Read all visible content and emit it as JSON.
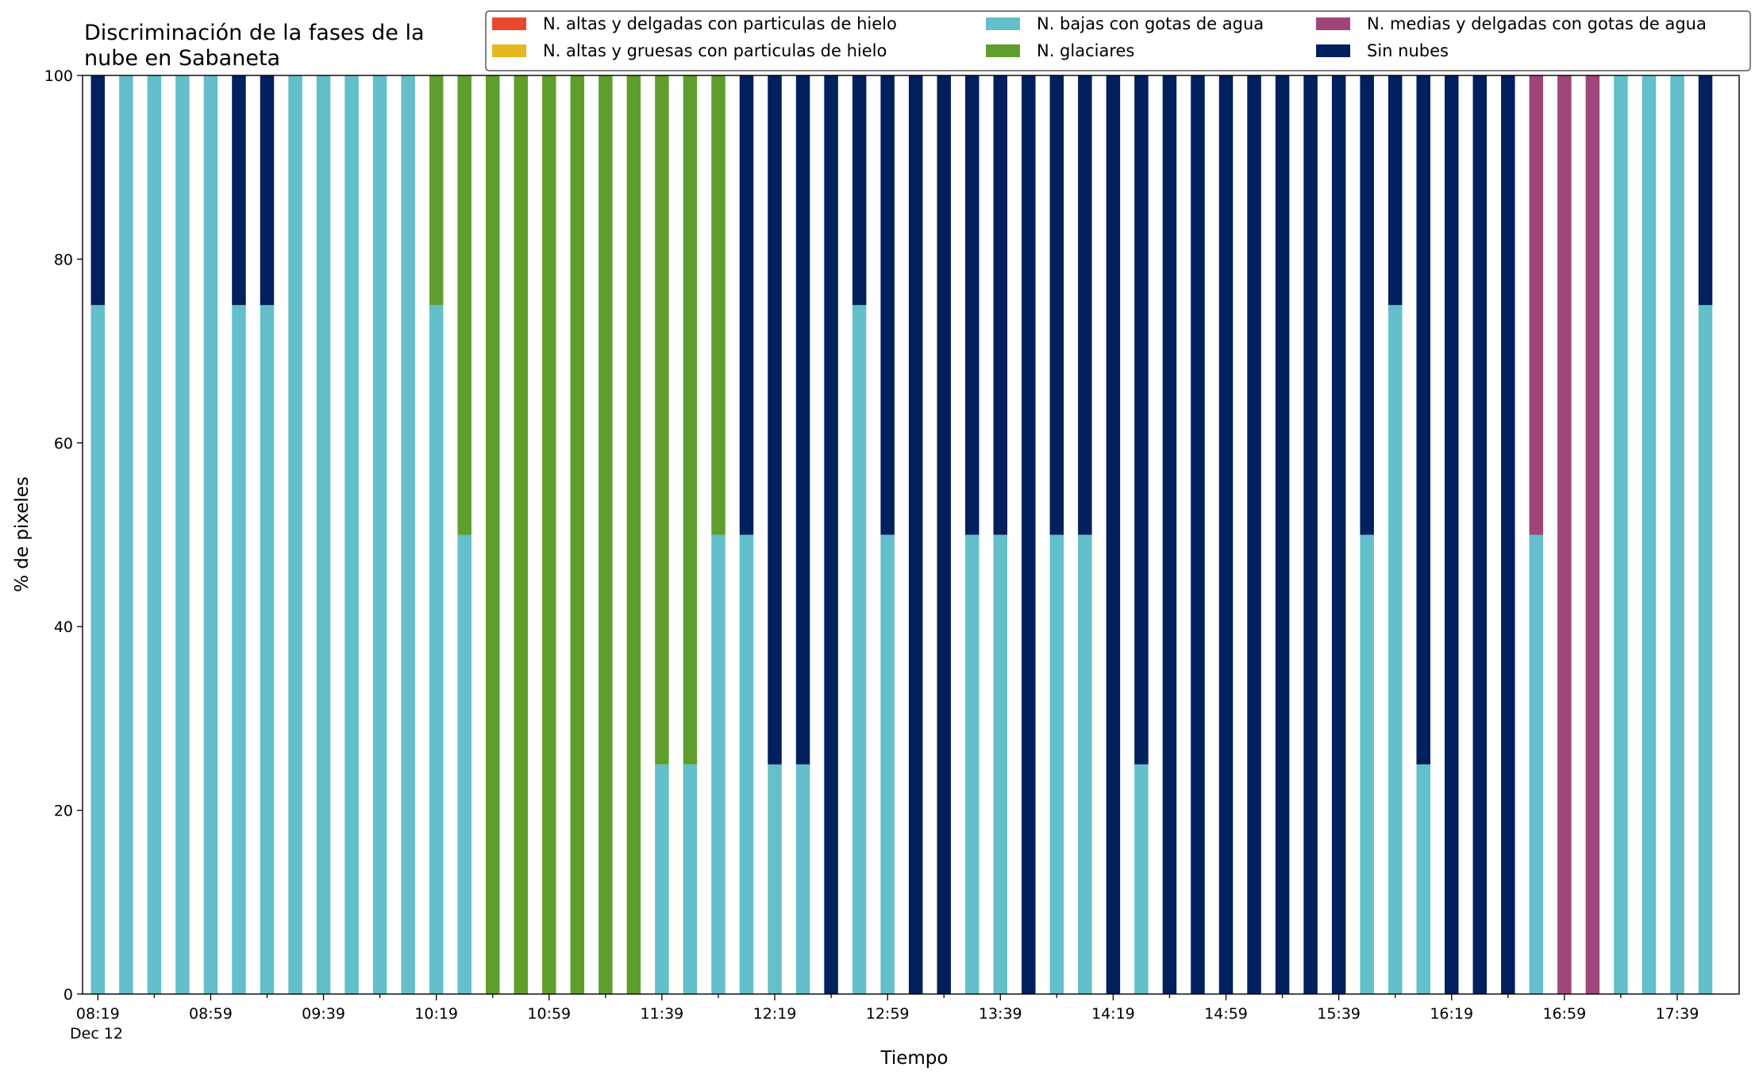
{
  "chart_data": {
    "type": "bar",
    "stacked": true,
    "title": "Discriminación de la fases de la\nnube en Sabaneta",
    "xlabel": "Tiempo",
    "ylabel": "% de pixeles",
    "ylim": [
      0,
      100
    ],
    "yticks": [
      0,
      20,
      40,
      60,
      80,
      100
    ],
    "xtick_labels": [
      "08:19",
      "08:59",
      "09:39",
      "10:19",
      "10:59",
      "11:39",
      "12:19",
      "12:59",
      "13:39",
      "14:19",
      "14:59",
      "15:39",
      "16:19",
      "16:59",
      "17:39"
    ],
    "x_date_label": "Dec 12",
    "legend_position": "top-right",
    "grid": false,
    "categories": [
      "08:19",
      "08:29",
      "08:39",
      "08:49",
      "08:59",
      "09:09",
      "09:19",
      "09:29",
      "09:39",
      "09:49",
      "09:59",
      "10:09",
      "10:19",
      "10:29",
      "10:39",
      "10:49",
      "10:59",
      "11:09",
      "11:19",
      "11:29",
      "11:39",
      "11:49",
      "11:59",
      "12:09",
      "12:19",
      "12:29",
      "12:39",
      "12:49",
      "12:59",
      "13:09",
      "13:19",
      "13:29",
      "13:39",
      "13:49",
      "13:59",
      "14:09",
      "14:19",
      "14:29",
      "14:39",
      "14:49",
      "14:59",
      "15:09",
      "15:19",
      "15:29",
      "15:39",
      "15:49",
      "15:59",
      "16:09",
      "16:19",
      "16:29",
      "16:39",
      "16:49",
      "16:59",
      "17:09",
      "17:19",
      "17:29",
      "17:39",
      "17:49"
    ],
    "series": [
      {
        "name": "N. altas y delgadas con particulas de hielo",
        "color": "#e8482d",
        "values": [
          0,
          0,
          0,
          0,
          0,
          0,
          0,
          0,
          0,
          0,
          0,
          0,
          0,
          0,
          0,
          0,
          0,
          0,
          0,
          0,
          0,
          0,
          0,
          0,
          0,
          0,
          0,
          0,
          0,
          0,
          0,
          0,
          0,
          0,
          0,
          0,
          0,
          0,
          0,
          0,
          0,
          0,
          0,
          0,
          0,
          0,
          0,
          0,
          0,
          0,
          0,
          0,
          0,
          0,
          0,
          0,
          0,
          0
        ]
      },
      {
        "name": "N. altas y gruesas con particulas de hielo",
        "color": "#e6b71e",
        "values": [
          0,
          0,
          0,
          0,
          0,
          0,
          0,
          0,
          0,
          0,
          0,
          0,
          0,
          0,
          0,
          0,
          0,
          0,
          0,
          0,
          0,
          0,
          0,
          0,
          0,
          0,
          0,
          0,
          0,
          0,
          0,
          0,
          0,
          0,
          0,
          0,
          0,
          0,
          0,
          0,
          0,
          0,
          0,
          0,
          0,
          0,
          0,
          0,
          0,
          0,
          0,
          0,
          0,
          0,
          0,
          0,
          0,
          0
        ]
      },
      {
        "name": "N. bajas con gotas de agua",
        "color": "#63bfc9",
        "values": [
          75,
          100,
          100,
          100,
          100,
          75,
          75,
          100,
          100,
          100,
          100,
          100,
          75,
          50,
          0,
          0,
          0,
          0,
          0,
          0,
          25,
          25,
          50,
          50,
          25,
          25,
          0,
          75,
          50,
          0,
          0,
          50,
          50,
          0,
          50,
          50,
          0,
          25,
          0,
          0,
          0,
          0,
          0,
          0,
          0,
          50,
          75,
          25,
          0,
          0,
          0,
          50,
          0,
          0,
          100,
          100,
          100,
          75
        ]
      },
      {
        "name": "N. glaciares",
        "color": "#5f9e2c",
        "values": [
          0,
          0,
          0,
          0,
          0,
          0,
          0,
          0,
          0,
          0,
          0,
          0,
          25,
          50,
          100,
          100,
          100,
          100,
          100,
          100,
          75,
          75,
          50,
          0,
          0,
          0,
          0,
          0,
          0,
          0,
          0,
          0,
          0,
          0,
          0,
          0,
          0,
          0,
          0,
          0,
          0,
          0,
          0,
          0,
          0,
          0,
          0,
          0,
          0,
          0,
          0,
          0,
          0,
          0,
          0,
          0,
          0,
          0
        ]
      },
      {
        "name": "N. medias y delgadas con gotas de agua",
        "color": "#a0457a",
        "values": [
          0,
          0,
          0,
          0,
          0,
          0,
          0,
          0,
          0,
          0,
          0,
          0,
          0,
          0,
          0,
          0,
          0,
          0,
          0,
          0,
          0,
          0,
          0,
          0,
          0,
          0,
          0,
          0,
          0,
          0,
          0,
          0,
          0,
          0,
          0,
          0,
          0,
          0,
          0,
          0,
          0,
          0,
          0,
          0,
          0,
          0,
          0,
          0,
          0,
          0,
          0,
          50,
          100,
          100,
          0,
          0,
          0,
          0
        ]
      },
      {
        "name": "Sin nubes",
        "color": "#021f5e",
        "values": [
          25,
          0,
          0,
          0,
          0,
          25,
          25,
          0,
          0,
          0,
          0,
          0,
          0,
          0,
          0,
          0,
          0,
          0,
          0,
          0,
          0,
          0,
          0,
          50,
          75,
          75,
          100,
          25,
          50,
          100,
          100,
          50,
          50,
          100,
          50,
          50,
          100,
          75,
          100,
          100,
          100,
          100,
          100,
          100,
          100,
          50,
          25,
          75,
          100,
          100,
          100,
          0,
          0,
          0,
          0,
          0,
          0,
          25
        ]
      }
    ],
    "legend_order": [
      0,
      1,
      2,
      3,
      4,
      5
    ],
    "legend_rows": 2
  }
}
